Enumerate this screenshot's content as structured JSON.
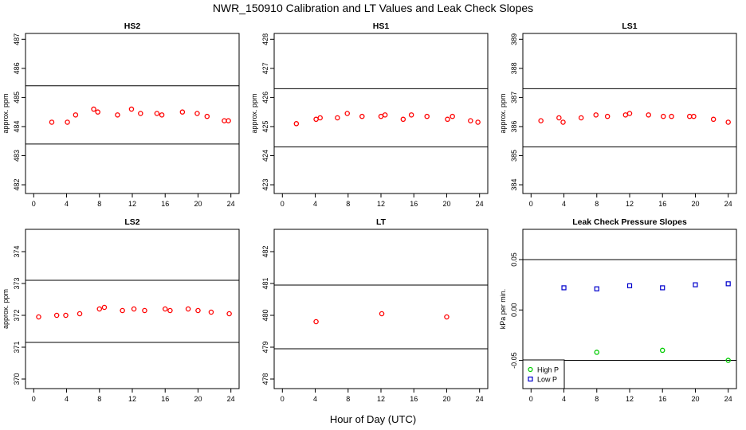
{
  "figure": {
    "title": "NWR_150910  Calibration and LT Values and Leak Check Slopes",
    "xlabel": "Hour of Day (UTC)"
  },
  "chart_data": [
    {
      "type": "scatter",
      "title": "HS2",
      "ylabel": "approx. ppm",
      "xlim": [
        -1,
        25
      ],
      "ylim": [
        481.7,
        487.2
      ],
      "xticks": [
        0,
        4,
        8,
        12,
        16,
        20,
        24
      ],
      "yticks": [
        482,
        483,
        484,
        485,
        486,
        487
      ],
      "hlines": [
        485.4,
        483.4
      ],
      "marker": "circle",
      "color": "#ff0000",
      "series": [
        {
          "x": [
            2.2,
            4.1,
            5.1,
            7.3,
            7.8,
            10.2,
            11.9,
            13.0,
            15.0,
            15.6,
            18.1,
            19.9,
            21.1,
            23.2,
            23.7
          ],
          "y": [
            484.15,
            484.15,
            484.4,
            484.6,
            484.5,
            484.4,
            484.6,
            484.45,
            484.45,
            484.4,
            484.5,
            484.45,
            484.35,
            484.2,
            484.2
          ]
        }
      ]
    },
    {
      "type": "scatter",
      "title": "HS1",
      "ylabel": "approx. ppm",
      "xlim": [
        -1,
        25
      ],
      "ylim": [
        422.7,
        428.2
      ],
      "xticks": [
        0,
        4,
        8,
        12,
        16,
        20,
        24
      ],
      "yticks": [
        423,
        424,
        425,
        426,
        427,
        428
      ],
      "hlines": [
        426.3,
        424.3
      ],
      "marker": "circle",
      "color": "#ff0000",
      "series": [
        {
          "x": [
            1.7,
            4.1,
            4.6,
            6.7,
            7.9,
            9.7,
            12.0,
            12.5,
            14.7,
            15.7,
            17.6,
            20.1,
            20.7,
            22.9,
            23.8
          ],
          "y": [
            425.1,
            425.25,
            425.3,
            425.3,
            425.45,
            425.35,
            425.35,
            425.4,
            425.25,
            425.4,
            425.35,
            425.25,
            425.35,
            425.2,
            425.15
          ]
        }
      ]
    },
    {
      "type": "scatter",
      "title": "LS1",
      "ylabel": "approx. ppm",
      "xlim": [
        -1,
        25
      ],
      "ylim": [
        383.7,
        389.2
      ],
      "xticks": [
        0,
        4,
        8,
        12,
        16,
        20,
        24
      ],
      "yticks": [
        384,
        385,
        386,
        387,
        388,
        389
      ],
      "hlines": [
        387.3,
        385.3
      ],
      "marker": "circle",
      "color": "#ff0000",
      "series": [
        {
          "x": [
            1.2,
            3.4,
            3.9,
            6.1,
            7.9,
            9.3,
            11.5,
            12.0,
            14.3,
            16.1,
            17.1,
            19.3,
            19.8,
            22.2,
            24.0
          ],
          "y": [
            386.2,
            386.3,
            386.15,
            386.3,
            386.4,
            386.35,
            386.4,
            386.45,
            386.4,
            386.35,
            386.35,
            386.35,
            386.35,
            386.25,
            386.15
          ]
        }
      ]
    },
    {
      "type": "scatter",
      "title": "LS2",
      "ylabel": "approx. ppm",
      "xlim": [
        -1,
        25
      ],
      "ylim": [
        369.7,
        374.7
      ],
      "xticks": [
        0,
        4,
        8,
        12,
        16,
        20,
        24
      ],
      "yticks": [
        370,
        371,
        372,
        373,
        374
      ],
      "hlines": [
        373.1,
        371.15
      ],
      "marker": "circle",
      "color": "#ff0000",
      "series": [
        {
          "x": [
            0.6,
            2.8,
            3.9,
            5.6,
            8.0,
            8.6,
            10.8,
            12.2,
            13.5,
            16.0,
            16.6,
            18.8,
            20.0,
            21.6,
            23.8
          ],
          "y": [
            371.95,
            372.0,
            372.0,
            372.05,
            372.2,
            372.25,
            372.15,
            372.2,
            372.15,
            372.2,
            372.15,
            372.2,
            372.15,
            372.1,
            372.05
          ]
        }
      ]
    },
    {
      "type": "scatter",
      "title": "LT",
      "ylabel": "",
      "xlim": [
        -1,
        25
      ],
      "ylim": [
        477.7,
        482.7
      ],
      "xticks": [
        0,
        4,
        8,
        12,
        16,
        20,
        24
      ],
      "yticks": [
        478,
        479,
        480,
        481,
        482
      ],
      "hlines": [
        480.95,
        478.95
      ],
      "marker": "circle",
      "color": "#ff0000",
      "series": [
        {
          "x": [
            4.1,
            12.1,
            20.0
          ],
          "y": [
            479.8,
            480.05,
            479.95
          ]
        }
      ]
    },
    {
      "type": "scatter",
      "title": "Leak Check Pressure Slopes",
      "ylabel": "kPa per min.",
      "xlim": [
        -1,
        25
      ],
      "ylim": [
        -0.078,
        0.08
      ],
      "xticks": [
        0,
        4,
        8,
        12,
        16,
        20,
        24
      ],
      "yticks": [
        -0.05,
        0.0,
        0.05
      ],
      "yticklabels": [
        "-0.05",
        "0.00",
        "0.05"
      ],
      "hlines": [
        0.05,
        -0.05
      ],
      "legend": "bottom-left",
      "series": [
        {
          "name": "High P",
          "marker": "circle",
          "color": "#00cc00",
          "x": [
            8.0,
            16.0,
            24.0
          ],
          "y": [
            -0.042,
            -0.04,
            -0.05
          ]
        },
        {
          "name": "Low P",
          "marker": "square",
          "color": "#0000cc",
          "x": [
            4.0,
            8.0,
            12.0,
            16.0,
            20.0,
            24.0
          ],
          "y": [
            0.022,
            0.021,
            0.024,
            0.022,
            0.025,
            0.026
          ]
        }
      ]
    }
  ]
}
